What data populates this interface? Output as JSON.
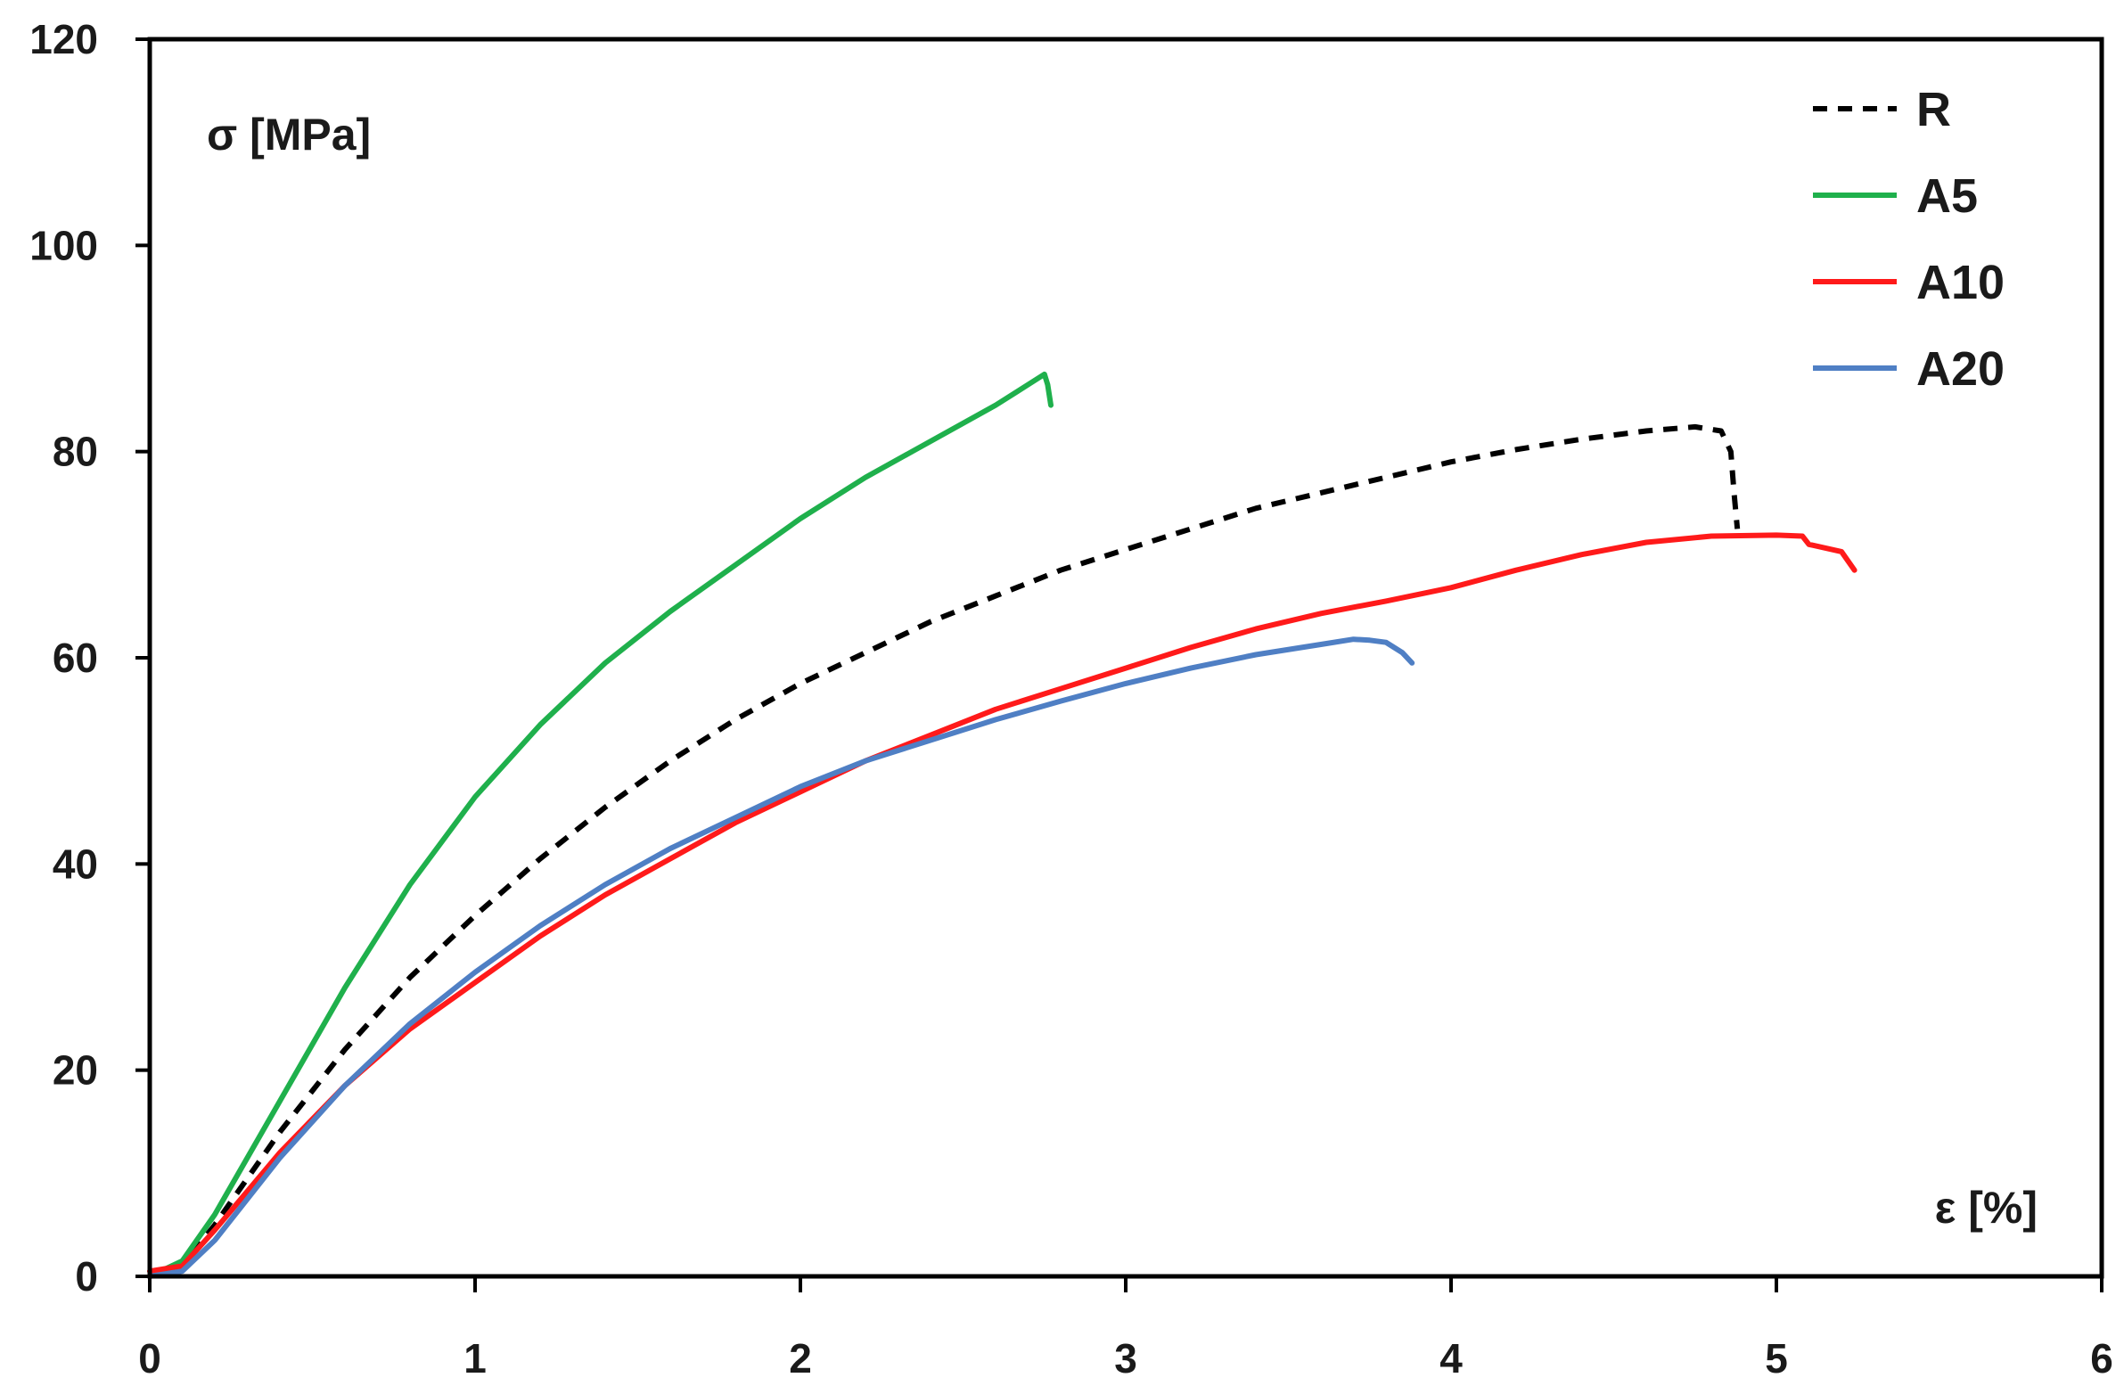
{
  "chart_data": {
    "type": "line",
    "title": "",
    "xlabel": "ε [%]",
    "ylabel": "σ [MPa]",
    "xlim": [
      0,
      6
    ],
    "ylim": [
      0,
      120
    ],
    "x_ticks": [
      "0",
      "1",
      "2",
      "3",
      "4",
      "5",
      "6"
    ],
    "y_ticks": [
      "0",
      "20",
      "40",
      "60",
      "80",
      "100",
      "120"
    ],
    "grid": false,
    "legend_position": "top-right",
    "series": [
      {
        "name": "R",
        "color": "#000000",
        "dash": true,
        "points": [
          [
            0,
            0
          ],
          [
            0.1,
            1
          ],
          [
            0.2,
            5
          ],
          [
            0.4,
            14
          ],
          [
            0.6,
            22
          ],
          [
            0.8,
            29
          ],
          [
            1.0,
            35
          ],
          [
            1.2,
            40.5
          ],
          [
            1.4,
            45.5
          ],
          [
            1.6,
            50
          ],
          [
            1.8,
            54
          ],
          [
            2.0,
            57.5
          ],
          [
            2.2,
            60.5
          ],
          [
            2.4,
            63.5
          ],
          [
            2.6,
            66
          ],
          [
            2.8,
            68.5
          ],
          [
            3.0,
            70.5
          ],
          [
            3.2,
            72.5
          ],
          [
            3.4,
            74.5
          ],
          [
            3.6,
            76
          ],
          [
            3.8,
            77.5
          ],
          [
            4.0,
            79
          ],
          [
            4.2,
            80.2
          ],
          [
            4.4,
            81.2
          ],
          [
            4.6,
            82
          ],
          [
            4.75,
            82.4
          ],
          [
            4.83,
            82
          ],
          [
            4.86,
            80
          ],
          [
            4.87,
            76
          ],
          [
            4.88,
            72.5
          ]
        ]
      },
      {
        "name": "A5",
        "color": "#1fb04c",
        "dash": false,
        "points": [
          [
            0,
            0
          ],
          [
            0.1,
            1.5
          ],
          [
            0.2,
            6
          ],
          [
            0.4,
            17
          ],
          [
            0.6,
            28
          ],
          [
            0.8,
            38
          ],
          [
            1.0,
            46.5
          ],
          [
            1.2,
            53.5
          ],
          [
            1.4,
            59.5
          ],
          [
            1.6,
            64.5
          ],
          [
            1.8,
            69
          ],
          [
            2.0,
            73.5
          ],
          [
            2.2,
            77.5
          ],
          [
            2.4,
            81
          ],
          [
            2.6,
            84.5
          ],
          [
            2.7,
            86.5
          ],
          [
            2.75,
            87.5
          ],
          [
            2.76,
            86.5
          ],
          [
            2.77,
            84.5
          ]
        ]
      },
      {
        "name": "A10",
        "color": "#ff1a1a",
        "dash": false,
        "points": [
          [
            0,
            0.5
          ],
          [
            0.1,
            1
          ],
          [
            0.2,
            4.5
          ],
          [
            0.4,
            12
          ],
          [
            0.6,
            18.5
          ],
          [
            0.8,
            24
          ],
          [
            1.0,
            28.5
          ],
          [
            1.2,
            33
          ],
          [
            1.4,
            37
          ],
          [
            1.6,
            40.5
          ],
          [
            1.8,
            44
          ],
          [
            2.0,
            47
          ],
          [
            2.2,
            50
          ],
          [
            2.4,
            52.5
          ],
          [
            2.6,
            55
          ],
          [
            2.8,
            57
          ],
          [
            3.0,
            59
          ],
          [
            3.2,
            61
          ],
          [
            3.4,
            62.8
          ],
          [
            3.6,
            64.3
          ],
          [
            3.8,
            65.5
          ],
          [
            4.0,
            66.8
          ],
          [
            4.2,
            68.5
          ],
          [
            4.4,
            70
          ],
          [
            4.6,
            71.2
          ],
          [
            4.8,
            71.8
          ],
          [
            5.0,
            71.9
          ],
          [
            5.08,
            71.8
          ],
          [
            5.1,
            71
          ],
          [
            5.2,
            70.3
          ],
          [
            5.24,
            68.5
          ]
        ]
      },
      {
        "name": "A20",
        "color": "#4f7fc4",
        "dash": false,
        "points": [
          [
            0,
            0
          ],
          [
            0.1,
            0.5
          ],
          [
            0.2,
            3.5
          ],
          [
            0.4,
            11.5
          ],
          [
            0.6,
            18.5
          ],
          [
            0.8,
            24.5
          ],
          [
            1.0,
            29.5
          ],
          [
            1.2,
            34
          ],
          [
            1.4,
            38
          ],
          [
            1.6,
            41.5
          ],
          [
            1.8,
            44.5
          ],
          [
            2.0,
            47.5
          ],
          [
            2.2,
            50
          ],
          [
            2.4,
            52
          ],
          [
            2.6,
            54
          ],
          [
            2.8,
            55.8
          ],
          [
            3.0,
            57.5
          ],
          [
            3.2,
            59
          ],
          [
            3.4,
            60.3
          ],
          [
            3.6,
            61.3
          ],
          [
            3.7,
            61.8
          ],
          [
            3.75,
            61.7
          ],
          [
            3.8,
            61.5
          ],
          [
            3.85,
            60.5
          ],
          [
            3.88,
            59.5
          ]
        ]
      }
    ]
  }
}
